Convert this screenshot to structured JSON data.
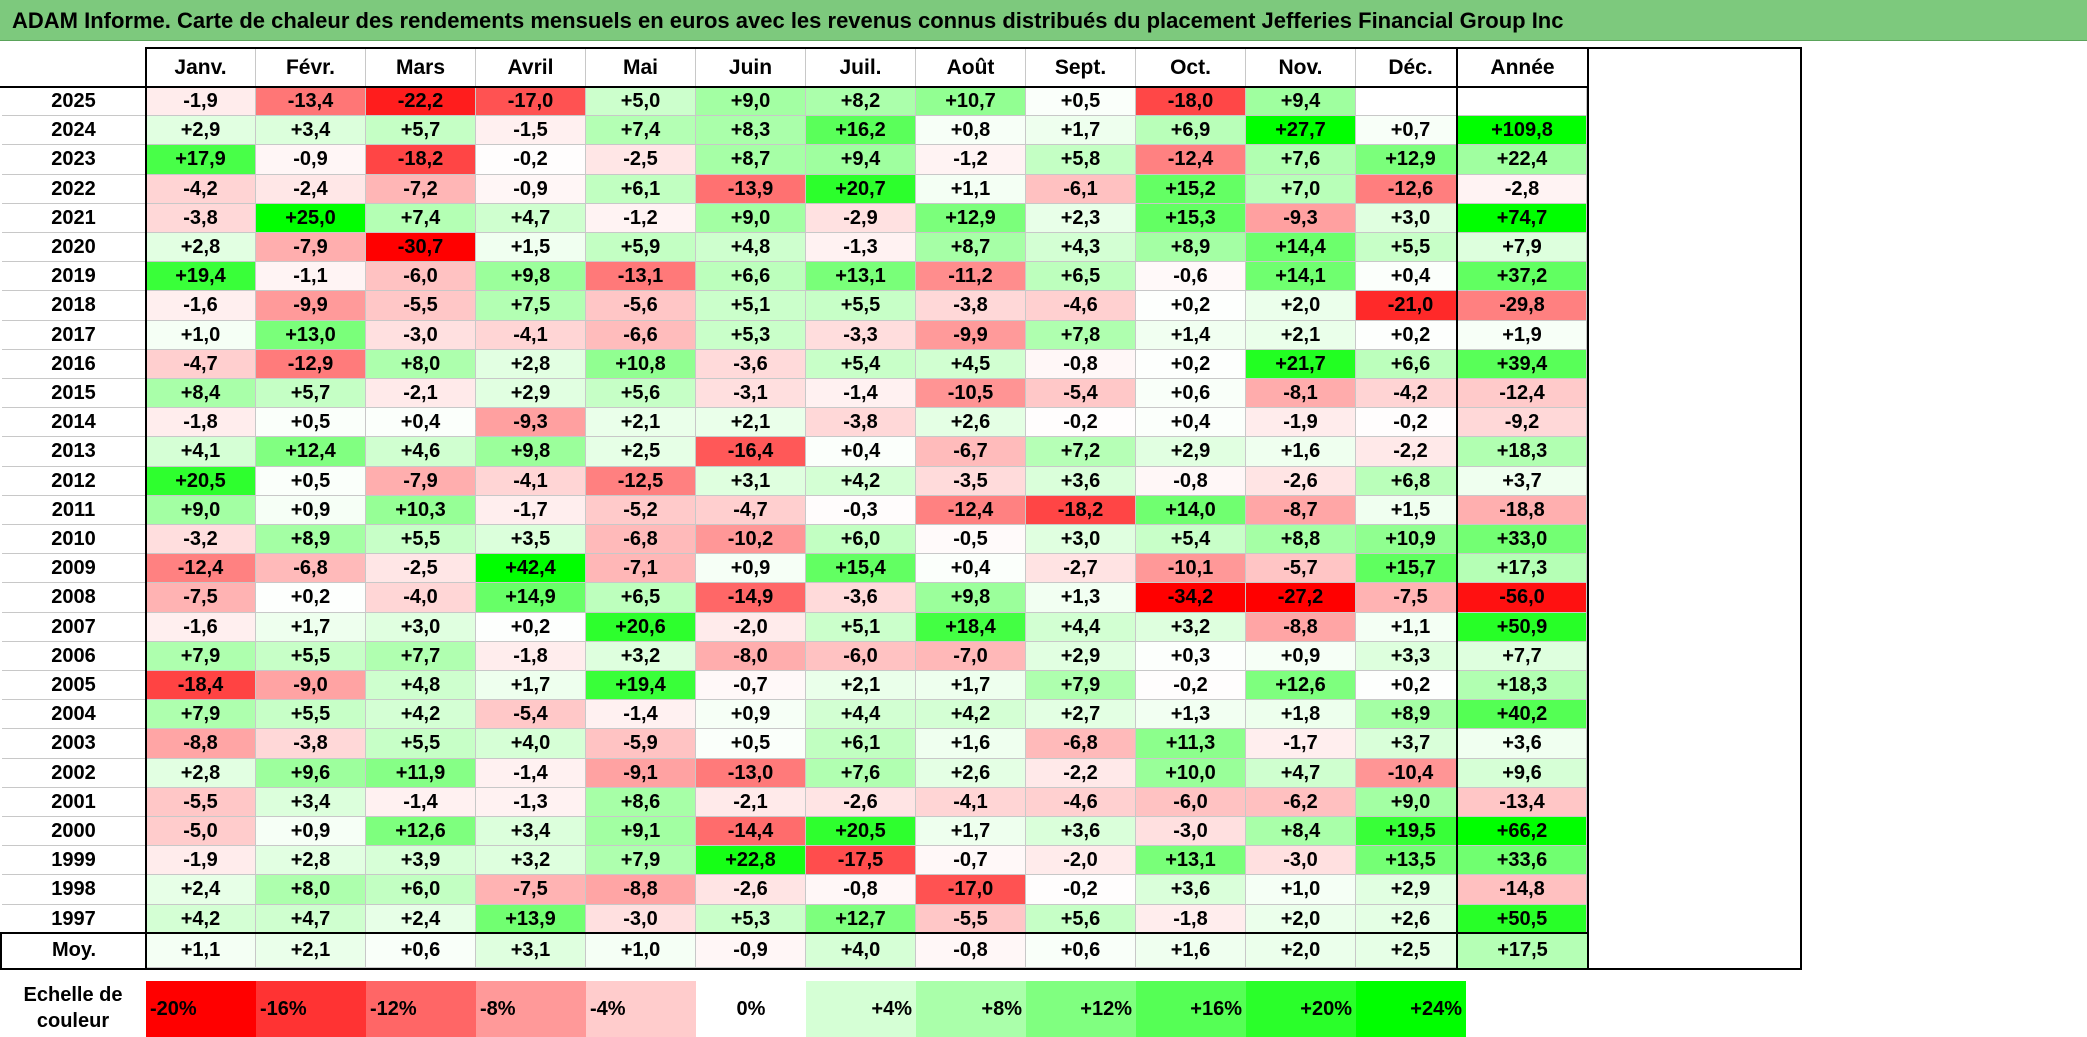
{
  "title": "ADAM Informe. Carte de chaleur des rendements mensuels en euros avec les revenus connus distribués du placement Jefferies Financial Group Inc",
  "chart_data": {
    "type": "heatmap",
    "months": [
      "Janv.",
      "Févr.",
      "Mars",
      "Avril",
      "Mai",
      "Juin",
      "Juil.",
      "Août",
      "Sept.",
      "Oct.",
      "Nov.",
      "Déc."
    ],
    "year_header": "Année",
    "rows": [
      {
        "year": "2025",
        "values": [
          "-1,9",
          "-13,4",
          "-22,2",
          "-17,0",
          "+5,0",
          "+9,0",
          "+8,2",
          "+10,7",
          "+0,5",
          "-18,0",
          "+9,4",
          ""
        ],
        "annual": ""
      },
      {
        "year": "2024",
        "values": [
          "+2,9",
          "+3,4",
          "+5,7",
          "-1,5",
          "+7,4",
          "+8,3",
          "+16,2",
          "+0,8",
          "+1,7",
          "+6,9",
          "+27,7",
          "+0,7"
        ],
        "annual": "+109,8"
      },
      {
        "year": "2023",
        "values": [
          "+17,9",
          "-0,9",
          "-18,2",
          "-0,2",
          "-2,5",
          "+8,7",
          "+9,4",
          "-1,2",
          "+5,8",
          "-12,4",
          "+7,6",
          "+12,9"
        ],
        "annual": "+22,4"
      },
      {
        "year": "2022",
        "values": [
          "-4,2",
          "-2,4",
          "-7,2",
          "-0,9",
          "+6,1",
          "-13,9",
          "+20,7",
          "+1,1",
          "-6,1",
          "+15,2",
          "+7,0",
          "-12,6"
        ],
        "annual": "-2,8"
      },
      {
        "year": "2021",
        "values": [
          "-3,8",
          "+25,0",
          "+7,4",
          "+4,7",
          "-1,2",
          "+9,0",
          "-2,9",
          "+12,9",
          "+2,3",
          "+15,3",
          "-9,3",
          "+3,0"
        ],
        "annual": "+74,7"
      },
      {
        "year": "2020",
        "values": [
          "+2,8",
          "-7,9",
          "-30,7",
          "+1,5",
          "+5,9",
          "+4,8",
          "-1,3",
          "+8,7",
          "+4,3",
          "+8,9",
          "+14,4",
          "+5,5"
        ],
        "annual": "+7,9"
      },
      {
        "year": "2019",
        "values": [
          "+19,4",
          "-1,1",
          "-6,0",
          "+9,8",
          "-13,1",
          "+6,6",
          "+13,1",
          "-11,2",
          "+6,5",
          "-0,6",
          "+14,1",
          "+0,4"
        ],
        "annual": "+37,2"
      },
      {
        "year": "2018",
        "values": [
          "-1,6",
          "-9,9",
          "-5,5",
          "+7,5",
          "-5,6",
          "+5,1",
          "+5,5",
          "-3,8",
          "-4,6",
          "+0,2",
          "+2,0",
          "-21,0"
        ],
        "annual": "-29,8"
      },
      {
        "year": "2017",
        "values": [
          "+1,0",
          "+13,0",
          "-3,0",
          "-4,1",
          "-6,6",
          "+5,3",
          "-3,3",
          "-9,9",
          "+7,8",
          "+1,4",
          "+2,1",
          "+0,2"
        ],
        "annual": "+1,9"
      },
      {
        "year": "2016",
        "values": [
          "-4,7",
          "-12,9",
          "+8,0",
          "+2,8",
          "+10,8",
          "-3,6",
          "+5,4",
          "+4,5",
          "-0,8",
          "+0,2",
          "+21,7",
          "+6,6"
        ],
        "annual": "+39,4"
      },
      {
        "year": "2015",
        "values": [
          "+8,4",
          "+5,7",
          "-2,1",
          "+2,9",
          "+5,6",
          "-3,1",
          "-1,4",
          "-10,5",
          "-5,4",
          "+0,6",
          "-8,1",
          "-4,2"
        ],
        "annual": "-12,4"
      },
      {
        "year": "2014",
        "values": [
          "-1,8",
          "+0,5",
          "+0,4",
          "-9,3",
          "+2,1",
          "+2,1",
          "-3,8",
          "+2,6",
          "-0,2",
          "+0,4",
          "-1,9",
          "-0,2"
        ],
        "annual": "-9,2"
      },
      {
        "year": "2013",
        "values": [
          "+4,1",
          "+12,4",
          "+4,6",
          "+9,8",
          "+2,5",
          "-16,4",
          "+0,4",
          "-6,7",
          "+7,2",
          "+2,9",
          "+1,6",
          "-2,2"
        ],
        "annual": "+18,3"
      },
      {
        "year": "2012",
        "values": [
          "+20,5",
          "+0,5",
          "-7,9",
          "-4,1",
          "-12,5",
          "+3,1",
          "+4,2",
          "-3,5",
          "+3,6",
          "-0,8",
          "-2,6",
          "+6,8"
        ],
        "annual": "+3,7"
      },
      {
        "year": "2011",
        "values": [
          "+9,0",
          "+0,9",
          "+10,3",
          "-1,7",
          "-5,2",
          "-4,7",
          "-0,3",
          "-12,4",
          "-18,2",
          "+14,0",
          "-8,7",
          "+1,5"
        ],
        "annual": "-18,8"
      },
      {
        "year": "2010",
        "values": [
          "-3,2",
          "+8,9",
          "+5,5",
          "+3,5",
          "-6,8",
          "-10,2",
          "+6,0",
          "-0,5",
          "+3,0",
          "+5,4",
          "+8,8",
          "+10,9"
        ],
        "annual": "+33,0"
      },
      {
        "year": "2009",
        "values": [
          "-12,4",
          "-6,8",
          "-2,5",
          "+42,4",
          "-7,1",
          "+0,9",
          "+15,4",
          "+0,4",
          "-2,7",
          "-10,1",
          "-5,7",
          "+15,7"
        ],
        "annual": "+17,3"
      },
      {
        "year": "2008",
        "values": [
          "-7,5",
          "+0,2",
          "-4,0",
          "+14,9",
          "+6,5",
          "-14,9",
          "-3,6",
          "+9,8",
          "+1,3",
          "-34,2",
          "-27,2",
          "-7,5"
        ],
        "annual": "-56,0"
      },
      {
        "year": "2007",
        "values": [
          "-1,6",
          "+1,7",
          "+3,0",
          "+0,2",
          "+20,6",
          "-2,0",
          "+5,1",
          "+18,4",
          "+4,4",
          "+3,2",
          "-8,8",
          "+1,1"
        ],
        "annual": "+50,9"
      },
      {
        "year": "2006",
        "values": [
          "+7,9",
          "+5,5",
          "+7,7",
          "-1,8",
          "+3,2",
          "-8,0",
          "-6,0",
          "-7,0",
          "+2,9",
          "+0,3",
          "+0,9",
          "+3,3"
        ],
        "annual": "+7,7"
      },
      {
        "year": "2005",
        "values": [
          "-18,4",
          "-9,0",
          "+4,8",
          "+1,7",
          "+19,4",
          "-0,7",
          "+2,1",
          "+1,7",
          "+7,9",
          "-0,2",
          "+12,6",
          "+0,2"
        ],
        "annual": "+18,3"
      },
      {
        "year": "2004",
        "values": [
          "+7,9",
          "+5,5",
          "+4,2",
          "-5,4",
          "-1,4",
          "+0,9",
          "+4,4",
          "+4,2",
          "+2,7",
          "+1,3",
          "+1,8",
          "+8,9"
        ],
        "annual": "+40,2"
      },
      {
        "year": "2003",
        "values": [
          "-8,8",
          "-3,8",
          "+5,5",
          "+4,0",
          "-5,9",
          "+0,5",
          "+6,1",
          "+1,6",
          "-6,8",
          "+11,3",
          "-1,7",
          "+3,7"
        ],
        "annual": "+3,6"
      },
      {
        "year": "2002",
        "values": [
          "+2,8",
          "+9,6",
          "+11,9",
          "-1,4",
          "-9,1",
          "-13,0",
          "+7,6",
          "+2,6",
          "-2,2",
          "+10,0",
          "+4,7",
          "-10,4"
        ],
        "annual": "+9,6"
      },
      {
        "year": "2001",
        "values": [
          "-5,5",
          "+3,4",
          "-1,4",
          "-1,3",
          "+8,6",
          "-2,1",
          "-2,6",
          "-4,1",
          "-4,6",
          "-6,0",
          "-6,2",
          "+9,0"
        ],
        "annual": "-13,4"
      },
      {
        "year": "2000",
        "values": [
          "-5,0",
          "+0,9",
          "+12,6",
          "+3,4",
          "+9,1",
          "-14,4",
          "+20,5",
          "+1,7",
          "+3,6",
          "-3,0",
          "+8,4",
          "+19,5"
        ],
        "annual": "+66,2"
      },
      {
        "year": "1999",
        "values": [
          "-1,9",
          "+2,8",
          "+3,9",
          "+3,2",
          "+7,9",
          "+22,8",
          "-17,5",
          "-0,7",
          "-2,0",
          "+13,1",
          "-3,0",
          "+13,5"
        ],
        "annual": "+33,6"
      },
      {
        "year": "1998",
        "values": [
          "+2,4",
          "+8,0",
          "+6,0",
          "-7,5",
          "-8,8",
          "-2,6",
          "-0,8",
          "-17,0",
          "-0,2",
          "+3,6",
          "+1,0",
          "+2,9"
        ],
        "annual": "-14,8"
      },
      {
        "year": "1997",
        "values": [
          "+4,2",
          "+4,7",
          "+2,4",
          "+13,9",
          "-3,0",
          "+5,3",
          "+12,7",
          "-5,5",
          "+5,6",
          "-1,8",
          "+2,0",
          "+2,6"
        ],
        "annual": "+50,5"
      }
    ],
    "average": {
      "label": "Moy.",
      "values": [
        "+1,1",
        "+2,1",
        "+0,6",
        "+3,1",
        "+1,0",
        "-0,9",
        "+4,0",
        "-0,8",
        "+0,6",
        "+1,6",
        "+2,0",
        "+2,5"
      ],
      "annual": "+17,5"
    },
    "scale": {
      "label_line1": "Echelle de",
      "label_line2": "couleur",
      "steps": [
        {
          "label": "-20%",
          "value": -20
        },
        {
          "label": "-16%",
          "value": -16
        },
        {
          "label": "-12%",
          "value": -12
        },
        {
          "label": "-8%",
          "value": -8
        },
        {
          "label": "-4%",
          "value": -4
        },
        {
          "label": "0%",
          "value": 0
        },
        {
          "label": "+4%",
          "value": 4
        },
        {
          "label": "+8%",
          "value": 8
        },
        {
          "label": "+12%",
          "value": 12
        },
        {
          "label": "+16%",
          "value": 16
        },
        {
          "label": "+20%",
          "value": 20
        },
        {
          "label": "+24%",
          "value": 24
        }
      ]
    },
    "colors": {
      "negative_max": "#ff0000",
      "neutral": "#ffffff",
      "positive_max": "#00ff00",
      "title_bg": "#7dc97d"
    }
  }
}
